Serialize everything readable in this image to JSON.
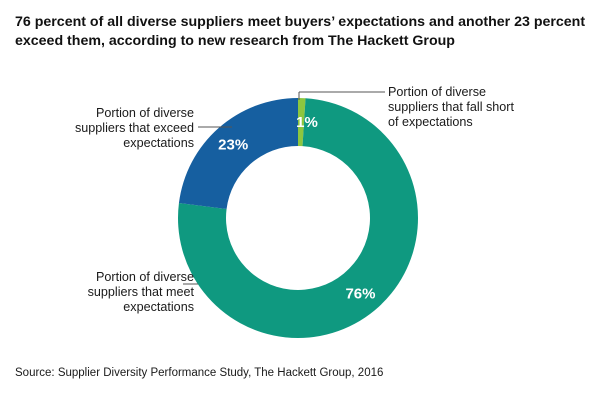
{
  "title_line1": "76 percent of all diverse suppliers meet buyers’ expectations and another 23 percent",
  "title_line2": "exceed them, according to new research from The Hackett Group",
  "source": "Source: Supplier Diversity Performance Study, The Hackett Group, 2016",
  "colors": {
    "meet": "#0f9980",
    "exceed": "#165fa0",
    "fall_short": "#8dc63f",
    "leader_line": "#555555"
  },
  "chart_data": {
    "type": "pie",
    "subtype": "donut",
    "title": "76 percent of all diverse suppliers meet buyers’ expectations and another 23 percent exceed them, according to new research from The Hackett Group",
    "categories": [
      "Portion of diverse suppliers that fall short of expectations",
      "Portion of diverse suppliers that meet expectations",
      "Portion of diverse suppliers that exceed expectations"
    ],
    "values": [
      1,
      76,
      23
    ],
    "value_labels": [
      "1%",
      "76%",
      "23%"
    ],
    "start_angle": "12 o'clock, clockwise",
    "slices": [
      {
        "key": "fall_short",
        "value": 1,
        "label": "1%",
        "callout_lines": [
          "Portion of diverse",
          "suppliers that fall short",
          "of expectations"
        ],
        "color": "#8dc63f"
      },
      {
        "key": "meet",
        "value": 76,
        "label": "76%",
        "callout_lines": [
          "Portion of diverse",
          "suppliers that meet",
          "expectations"
        ],
        "color": "#0f9980"
      },
      {
        "key": "exceed",
        "value": 23,
        "label": "23%",
        "callout_lines": [
          "Portion of diverse",
          "suppliers that exceed",
          "expectations"
        ],
        "color": "#165fa0"
      }
    ]
  }
}
